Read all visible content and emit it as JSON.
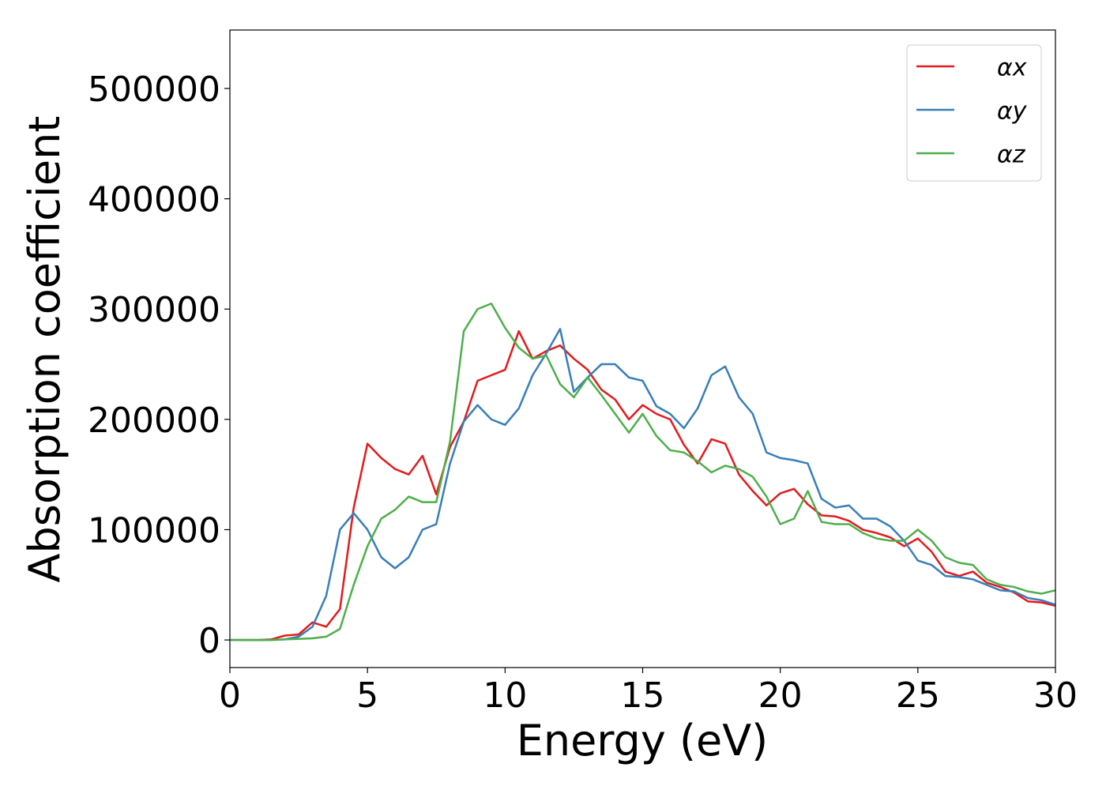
{
  "chart_data": {
    "type": "line",
    "xlabel": "Energy (eV)",
    "ylabel": "Absorption coefficient",
    "x": [
      0,
      0.5,
      1,
      1.5,
      2,
      2.5,
      3,
      3.5,
      4,
      4.5,
      5,
      5.5,
      6,
      6.5,
      7,
      7.5,
      8,
      8.5,
      9,
      9.5,
      10,
      10.5,
      11,
      11.5,
      12,
      12.5,
      13,
      13.5,
      14,
      14.5,
      15,
      15.5,
      16,
      16.5,
      17,
      17.5,
      18,
      18.5,
      19,
      19.5,
      20,
      20.5,
      21,
      21.5,
      22,
      22.5,
      23,
      23.5,
      24,
      24.5,
      25,
      25.5,
      26,
      26.5,
      27,
      27.5,
      28,
      28.5,
      29,
      29.5,
      30
    ],
    "series": [
      {
        "name": "αx",
        "color": "#e41a1c",
        "values": [
          0,
          0,
          0,
          500,
          4000,
          5000,
          16000,
          12000,
          28000,
          120000,
          178000,
          165000,
          155000,
          150000,
          167000,
          132000,
          175000,
          198000,
          235000,
          240000,
          245000,
          280000,
          255000,
          262000,
          267000,
          255000,
          245000,
          227000,
          218000,
          200000,
          213000,
          205000,
          200000,
          177000,
          160000,
          182000,
          178000,
          150000,
          135000,
          122000,
          133000,
          137000,
          123000,
          113000,
          112000,
          108000,
          100000,
          97000,
          93000,
          85000,
          92000,
          80000,
          62000,
          58000,
          62000,
          52000,
          48000,
          43000,
          35000,
          34000,
          31000
        ]
      },
      {
        "name": "αy",
        "color": "#377eb8",
        "values": [
          0,
          0,
          0,
          0,
          500,
          3000,
          12000,
          40000,
          100000,
          115000,
          100000,
          75000,
          65000,
          75000,
          100000,
          105000,
          160000,
          198000,
          213000,
          200000,
          195000,
          210000,
          240000,
          260000,
          282000,
          225000,
          238000,
          250000,
          250000,
          238000,
          235000,
          212000,
          205000,
          192000,
          210000,
          240000,
          248000,
          220000,
          205000,
          170000,
          165000,
          163000,
          160000,
          128000,
          120000,
          122000,
          110000,
          110000,
          103000,
          90000,
          72000,
          68000,
          58000,
          57000,
          55000,
          50000,
          45000,
          44000,
          38000,
          36000,
          32000
        ]
      },
      {
        "name": "αz",
        "color": "#4daf4a",
        "values": [
          0,
          0,
          0,
          0,
          500,
          1000,
          1500,
          3000,
          10000,
          50000,
          85000,
          110000,
          118000,
          130000,
          125000,
          125000,
          180000,
          280000,
          300000,
          305000,
          283000,
          265000,
          255000,
          258000,
          232000,
          220000,
          238000,
          222000,
          205000,
          188000,
          205000,
          185000,
          172000,
          170000,
          162000,
          152000,
          158000,
          155000,
          148000,
          130000,
          105000,
          110000,
          135000,
          107000,
          105000,
          105000,
          97000,
          92000,
          90000,
          90000,
          100000,
          90000,
          75000,
          70000,
          68000,
          55000,
          50000,
          48000,
          44000,
          42000,
          45000
        ]
      }
    ],
    "xlim": [
      0,
      30
    ],
    "xticks": [
      0,
      5,
      10,
      15,
      20,
      25,
      30
    ],
    "ylim": [
      -25000,
      553000
    ],
    "yticks": [
      0,
      100000,
      200000,
      300000,
      400000,
      500000
    ],
    "legend": "upper right"
  }
}
